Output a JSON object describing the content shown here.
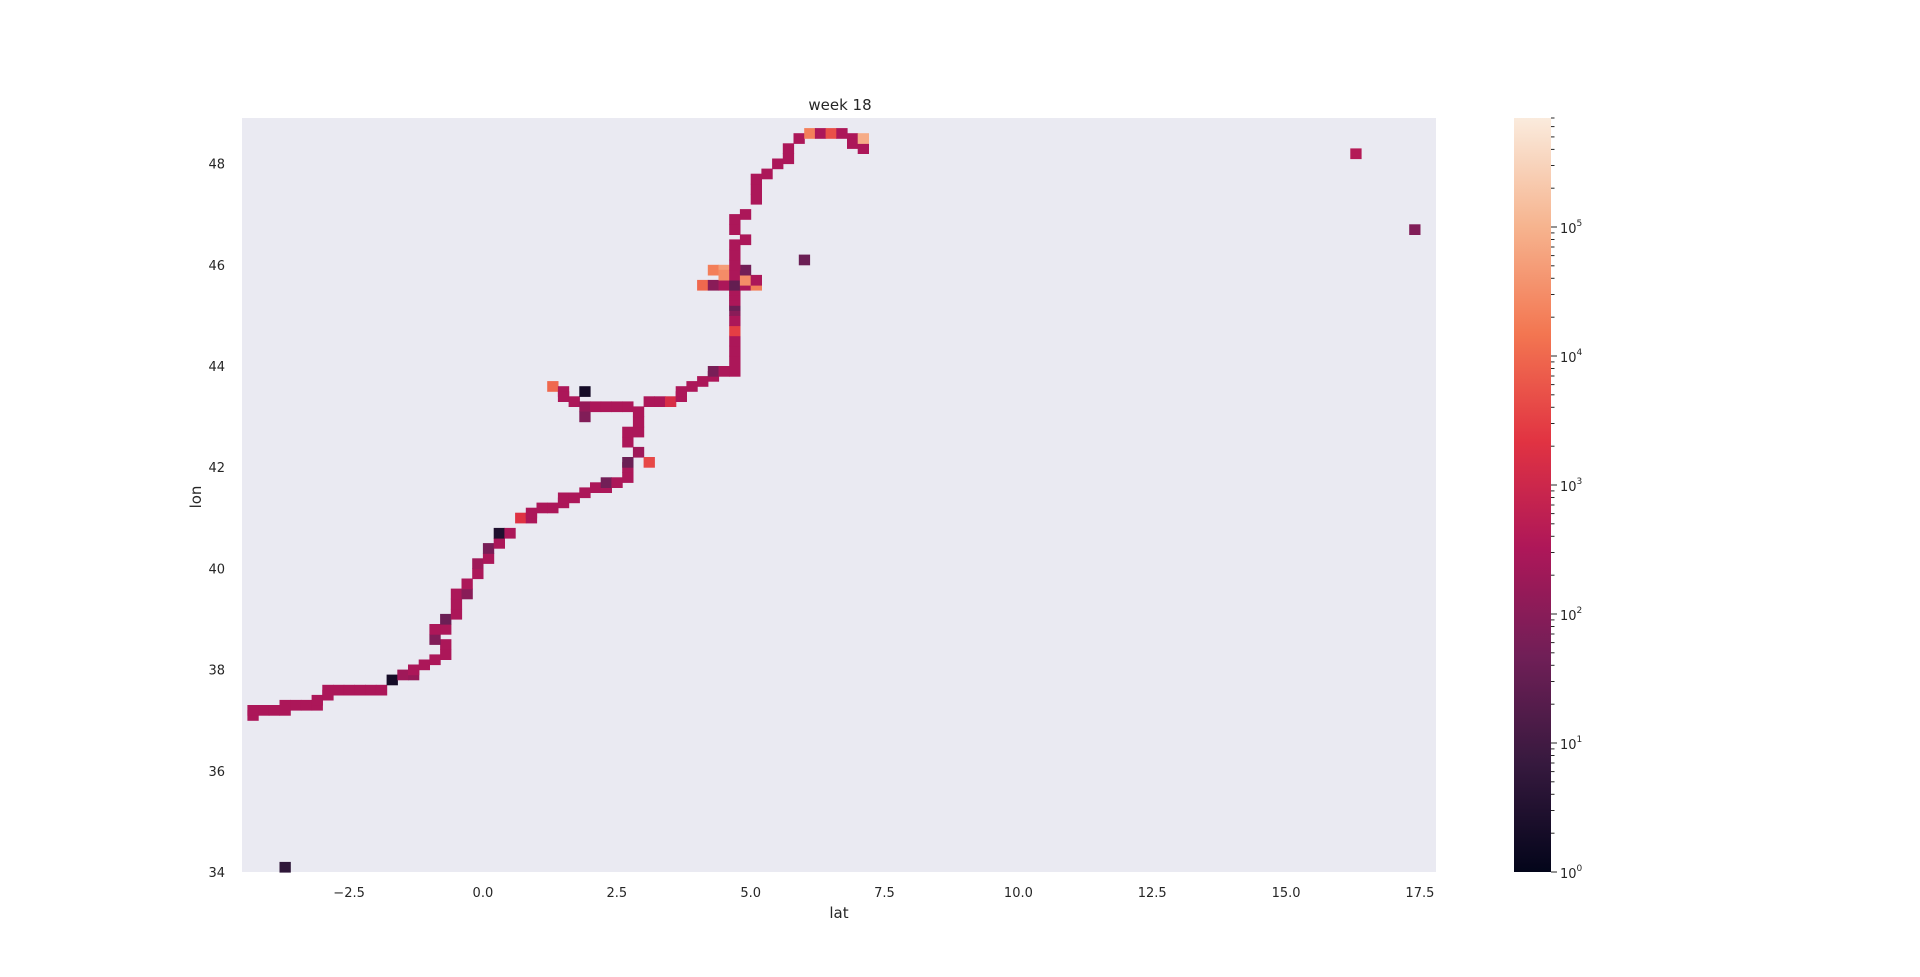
{
  "chart_data": {
    "type": "heatmap",
    "title": "week 18",
    "xlabel": "lat",
    "ylabel": "lon",
    "xlim": [
      -4.5,
      17.8
    ],
    "ylim": [
      34.0,
      48.9
    ],
    "cell_size": [
      0.2,
      0.2
    ],
    "grid": false,
    "x_ticks": [
      -2.5,
      0.0,
      2.5,
      5.0,
      7.5,
      10.0,
      12.5,
      15.0,
      17.5
    ],
    "x_tick_labels": [
      "−2.5",
      "0.0",
      "2.5",
      "5.0",
      "7.5",
      "10.0",
      "12.5",
      "15.0",
      "17.5"
    ],
    "y_ticks": [
      34,
      36,
      38,
      40,
      42,
      44,
      46,
      48
    ],
    "y_tick_labels": [
      "34",
      "36",
      "38",
      "40",
      "42",
      "44",
      "46",
      "48"
    ],
    "colorbar": {
      "scale": "log",
      "range": [
        1,
        700000
      ],
      "ticks": [
        1,
        10,
        100,
        1000,
        10000,
        100000
      ],
      "tick_base": "10",
      "tick_exponents": [
        "0",
        "1",
        "2",
        "3",
        "4",
        "5"
      ],
      "colormap": [
        "#03051a",
        "#36193e",
        "#701f57",
        "#ae1759",
        "#e13342",
        "#f37651",
        "#f6b48f",
        "#faebdd"
      ]
    },
    "cells": [
      [
        -4.4,
        37.0,
        300
      ],
      [
        -4.4,
        37.1,
        300
      ],
      [
        -4.2,
        37.1,
        300
      ],
      [
        -4.0,
        37.1,
        300
      ],
      [
        -3.8,
        37.1,
        300
      ],
      [
        -3.8,
        37.2,
        300
      ],
      [
        -3.6,
        37.2,
        300
      ],
      [
        -3.4,
        37.2,
        300
      ],
      [
        -3.2,
        37.2,
        300
      ],
      [
        -3.2,
        37.3,
        300
      ],
      [
        -3.0,
        37.4,
        300
      ],
      [
        -3.0,
        37.5,
        300
      ],
      [
        -2.8,
        37.5,
        300
      ],
      [
        -2.6,
        37.5,
        300
      ],
      [
        -2.4,
        37.5,
        300
      ],
      [
        -2.2,
        37.5,
        300
      ],
      [
        -2.0,
        37.5,
        300
      ],
      [
        -1.8,
        37.7,
        2
      ],
      [
        -1.6,
        37.8,
        200
      ],
      [
        -1.4,
        37.8,
        150
      ],
      [
        -1.4,
        37.9,
        300
      ],
      [
        -1.2,
        38.0,
        300
      ],
      [
        -1.0,
        38.1,
        300
      ],
      [
        -0.8,
        38.2,
        300
      ],
      [
        -0.8,
        38.4,
        300
      ],
      [
        -1.0,
        38.5,
        80
      ],
      [
        -1.0,
        38.7,
        300
      ],
      [
        -0.8,
        38.7,
        300
      ],
      [
        -0.8,
        38.9,
        40
      ],
      [
        -0.6,
        39.0,
        300
      ],
      [
        -0.6,
        39.2,
        300
      ],
      [
        -0.6,
        39.4,
        300
      ],
      [
        -0.4,
        39.4,
        100
      ],
      [
        -0.4,
        39.6,
        300
      ],
      [
        -0.2,
        39.8,
        300
      ],
      [
        -0.2,
        40.0,
        200
      ],
      [
        0.0,
        40.1,
        300
      ],
      [
        0.0,
        40.3,
        60
      ],
      [
        0.2,
        40.4,
        300
      ],
      [
        0.2,
        40.6,
        3
      ],
      [
        0.4,
        40.6,
        300
      ],
      [
        0.6,
        40.9,
        2000
      ],
      [
        0.8,
        40.9,
        300
      ],
      [
        0.8,
        41.0,
        300
      ],
      [
        1.0,
        41.1,
        300
      ],
      [
        1.2,
        41.1,
        300
      ],
      [
        1.4,
        41.2,
        300
      ],
      [
        1.4,
        41.3,
        300
      ],
      [
        1.6,
        41.3,
        300
      ],
      [
        1.8,
        41.4,
        300
      ],
      [
        2.0,
        41.5,
        300
      ],
      [
        2.2,
        41.5,
        300
      ],
      [
        2.2,
        41.6,
        50
      ],
      [
        2.4,
        41.6,
        300
      ],
      [
        2.6,
        41.7,
        300
      ],
      [
        2.6,
        41.9,
        300
      ],
      [
        2.6,
        42.0,
        40
      ],
      [
        2.8,
        42.2,
        200
      ],
      [
        3.0,
        42.0,
        4000
      ],
      [
        2.6,
        42.4,
        300
      ],
      [
        2.6,
        42.6,
        300
      ],
      [
        2.8,
        42.6,
        300
      ],
      [
        2.8,
        42.8,
        300
      ],
      [
        2.8,
        43.0,
        300
      ],
      [
        1.2,
        43.5,
        10000
      ],
      [
        1.4,
        43.4,
        300
      ],
      [
        1.4,
        43.3,
        300
      ],
      [
        1.6,
        43.2,
        300
      ],
      [
        1.8,
        43.4,
        2
      ],
      [
        1.8,
        43.1,
        150
      ],
      [
        1.8,
        42.9,
        80
      ],
      [
        2.0,
        43.1,
        300
      ],
      [
        2.2,
        43.1,
        300
      ],
      [
        2.4,
        43.1,
        300
      ],
      [
        2.6,
        43.1,
        300
      ],
      [
        3.0,
        43.2,
        300
      ],
      [
        3.2,
        43.2,
        300
      ],
      [
        3.4,
        43.2,
        1500
      ],
      [
        3.6,
        43.3,
        300
      ],
      [
        3.6,
        43.4,
        300
      ],
      [
        3.8,
        43.5,
        300
      ],
      [
        4.0,
        43.6,
        300
      ],
      [
        4.2,
        43.7,
        300
      ],
      [
        4.2,
        43.8,
        60
      ],
      [
        4.4,
        43.8,
        300
      ],
      [
        4.6,
        43.8,
        300
      ],
      [
        4.6,
        44.0,
        300
      ],
      [
        4.6,
        44.2,
        300
      ],
      [
        4.6,
        44.4,
        300
      ],
      [
        4.6,
        44.6,
        3000
      ],
      [
        4.6,
        44.8,
        300
      ],
      [
        4.6,
        45.0,
        100
      ],
      [
        4.6,
        45.1,
        40
      ],
      [
        4.6,
        45.2,
        300
      ],
      [
        4.6,
        45.3,
        300
      ],
      [
        4.6,
        45.4,
        300
      ],
      [
        4.0,
        45.5,
        10000
      ],
      [
        4.2,
        45.5,
        100
      ],
      [
        4.4,
        45.5,
        300
      ],
      [
        4.6,
        45.5,
        30
      ],
      [
        4.8,
        45.5,
        300
      ],
      [
        5.0,
        45.5,
        20000
      ],
      [
        4.2,
        45.8,
        20000
      ],
      [
        4.4,
        45.8,
        50000
      ],
      [
        4.4,
        45.7,
        30000
      ],
      [
        4.6,
        45.7,
        300
      ],
      [
        4.8,
        45.6,
        30000
      ],
      [
        5.0,
        45.6,
        300
      ],
      [
        4.8,
        45.8,
        50
      ],
      [
        4.6,
        45.9,
        300
      ],
      [
        4.6,
        46.1,
        300
      ],
      [
        4.6,
        46.3,
        300
      ],
      [
        4.8,
        46.4,
        300
      ],
      [
        4.6,
        46.6,
        300
      ],
      [
        4.6,
        46.8,
        300
      ],
      [
        4.8,
        46.9,
        300
      ],
      [
        5.0,
        47.2,
        300
      ],
      [
        5.0,
        47.4,
        300
      ],
      [
        5.0,
        47.6,
        300
      ],
      [
        5.2,
        47.7,
        300
      ],
      [
        5.4,
        47.9,
        300
      ],
      [
        5.6,
        48.0,
        300
      ],
      [
        5.6,
        48.2,
        300
      ],
      [
        5.8,
        48.4,
        300
      ],
      [
        6.0,
        48.5,
        20000
      ],
      [
        6.2,
        48.5,
        300
      ],
      [
        6.4,
        48.5,
        5000
      ],
      [
        6.6,
        48.5,
        300
      ],
      [
        6.8,
        48.4,
        300
      ],
      [
        6.8,
        48.3,
        300
      ],
      [
        7.0,
        48.2,
        300
      ],
      [
        7.0,
        48.4,
        80000
      ],
      [
        5.9,
        46.0,
        40
      ],
      [
        16.2,
        48.1,
        400
      ],
      [
        17.3,
        46.6,
        80
      ],
      [
        -3.8,
        34.0,
        5
      ]
    ]
  }
}
